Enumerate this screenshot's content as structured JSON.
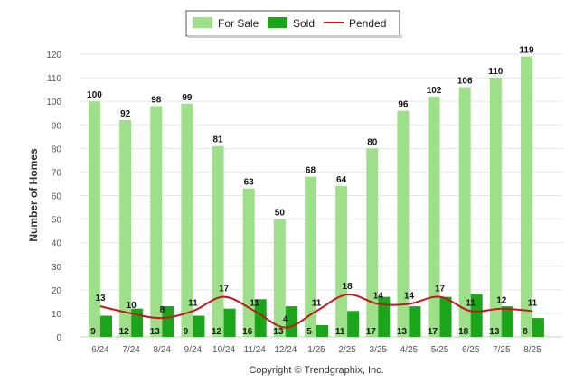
{
  "legend": {
    "for_sale": "For Sale",
    "sold": "Sold",
    "pended": "Pended"
  },
  "copyright": "Copyright © Trendgraphix, Inc.",
  "colors": {
    "for_sale": "#9ee08a",
    "sold": "#1aa51a",
    "pended": "#c0181d",
    "grid": "#e6e6e6",
    "axis": "#cccccc"
  },
  "chart_data": {
    "type": "bar",
    "ylabel": "Number of Homes",
    "xlabel": "",
    "ylim": [
      0,
      120
    ],
    "yticks": [
      0,
      10,
      20,
      30,
      40,
      50,
      60,
      70,
      80,
      90,
      100,
      110,
      120
    ],
    "grid": true,
    "legend_position": "top-center",
    "categories": [
      "6/24",
      "7/24",
      "8/24",
      "9/24",
      "10/24",
      "11/24",
      "12/24",
      "1/25",
      "2/25",
      "3/25",
      "4/25",
      "5/25",
      "6/25",
      "7/25",
      "8/25"
    ],
    "series": [
      {
        "name": "For Sale",
        "kind": "bar",
        "values": [
          100,
          92,
          98,
          99,
          81,
          63,
          50,
          68,
          64,
          80,
          96,
          102,
          106,
          110,
          119
        ]
      },
      {
        "name": "Sold",
        "kind": "bar",
        "values": [
          9,
          12,
          13,
          9,
          12,
          16,
          13,
          5,
          11,
          17,
          13,
          17,
          18,
          13,
          8
        ]
      },
      {
        "name": "Pended",
        "kind": "line",
        "values": [
          13,
          10,
          8,
          11,
          17,
          11,
          4,
          11,
          18,
          14,
          14,
          17,
          11,
          12,
          11
        ]
      }
    ]
  }
}
